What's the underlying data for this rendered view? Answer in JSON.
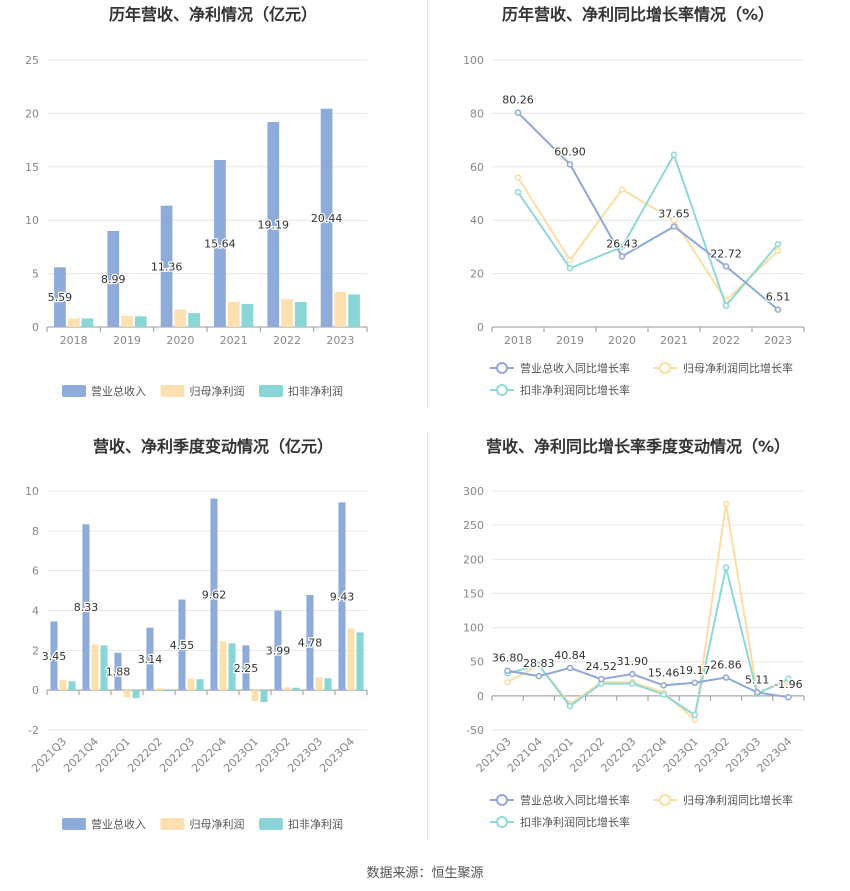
{
  "colors": {
    "revenue": "#8eabd9",
    "net_profit": "#fde0b0",
    "deducted_profit": "#8ad6d6",
    "revenue_line": "#8fa8d8",
    "net_line": "#fddea2",
    "deducted_line": "#8fd8d8",
    "grid": "#e6e6e6",
    "axis_text": "#888888",
    "label_text": "#333333"
  },
  "source_text": "数据来源：恒生聚源",
  "chart_data": [
    {
      "id": "annual-amounts",
      "type": "bar",
      "title": "历年营收、净利情况（亿元）",
      "categories": [
        "2018",
        "2019",
        "2020",
        "2021",
        "2022",
        "2023"
      ],
      "ylim": [
        0,
        25
      ],
      "yticks": [
        0,
        5,
        10,
        15,
        20,
        25
      ],
      "grid": true,
      "legend_position": "bottom",
      "series": [
        {
          "name": "营业总收入",
          "values": [
            5.59,
            8.99,
            11.36,
            15.64,
            19.19,
            20.44
          ],
          "labels": [
            "5.59",
            "8.99",
            "11.36",
            "15.64",
            "19.19",
            "20.44"
          ]
        },
        {
          "name": "归母净利润",
          "values": [
            0.8,
            1.05,
            1.65,
            2.35,
            2.6,
            3.3
          ]
        },
        {
          "name": "扣非净利润",
          "values": [
            0.8,
            1.0,
            1.3,
            2.15,
            2.35,
            3.05
          ]
        }
      ]
    },
    {
      "id": "annual-growth",
      "type": "line",
      "title": "历年营收、净利同比增长率情况（%）",
      "categories": [
        "2018",
        "2019",
        "2020",
        "2021",
        "2022",
        "2023"
      ],
      "ylim": [
        0,
        100
      ],
      "yticks": [
        0,
        20,
        40,
        60,
        80,
        100
      ],
      "grid": true,
      "legend_position": "bottom",
      "series": [
        {
          "name": "营业总收入同比增长率",
          "values": [
            80.26,
            60.9,
            26.43,
            37.65,
            22.72,
            6.51
          ],
          "labels": [
            "80.26",
            "60.90",
            "26.43",
            "37.65",
            "22.72",
            "6.51"
          ]
        },
        {
          "name": "归母净利润同比增长率",
          "values": [
            56,
            25,
            51.5,
            40,
            10,
            28.5
          ]
        },
        {
          "name": "扣非净利润同比增长率",
          "values": [
            50.5,
            22,
            30,
            64.5,
            8,
            31
          ]
        }
      ]
    },
    {
      "id": "quarterly-amounts",
      "type": "bar",
      "title": "营收、净利季度变动情况（亿元）",
      "categories": [
        "2021Q3",
        "2021Q4",
        "2022Q1",
        "2022Q2",
        "2022Q3",
        "2022Q4",
        "2023Q1",
        "2023Q2",
        "2023Q3",
        "2023Q4"
      ],
      "ylim": [
        -2,
        10
      ],
      "yticks": [
        -2,
        0,
        2,
        4,
        6,
        8,
        10
      ],
      "grid": true,
      "legend_position": "bottom",
      "series": [
        {
          "name": "营业总收入",
          "values": [
            3.45,
            8.33,
            1.88,
            3.14,
            4.55,
            9.62,
            2.25,
            3.99,
            4.78,
            9.43
          ],
          "labels": [
            "3.45",
            "8.33",
            "1.88",
            "3.14",
            "4.55",
            "9.62",
            "2.25",
            "3.99",
            "4.78",
            "9.43"
          ]
        },
        {
          "name": "归母净利润",
          "values": [
            0.5,
            2.3,
            -0.35,
            0.1,
            0.6,
            2.45,
            -0.55,
            0.15,
            0.65,
            3.1
          ]
        },
        {
          "name": "扣非净利润",
          "values": [
            0.45,
            2.25,
            -0.4,
            -0.05,
            0.55,
            2.35,
            -0.6,
            0.12,
            0.6,
            2.9
          ]
        }
      ]
    },
    {
      "id": "quarterly-growth",
      "type": "line",
      "title": "营收、净利同比增长率季度变动情况（%）",
      "categories": [
        "2021Q3",
        "2021Q4",
        "2022Q1",
        "2022Q2",
        "2022Q3",
        "2022Q4",
        "2023Q1",
        "2023Q2",
        "2023Q3",
        "2023Q4"
      ],
      "ylim": [
        -50,
        300
      ],
      "yticks": [
        -50,
        0,
        50,
        100,
        150,
        200,
        250,
        300
      ],
      "grid": true,
      "legend_position": "bottom",
      "series": [
        {
          "name": "营业总收入同比增长率",
          "values": [
            36.8,
            28.83,
            40.84,
            24.52,
            31.9,
            15.46,
            19.17,
            26.86,
            5.11,
            -1.96
          ],
          "labels": [
            "36.80",
            "28.83",
            "40.84",
            "24.52",
            "31.90",
            "15.46",
            "19.17",
            "26.86",
            "5.11",
            "-1.96"
          ]
        },
        {
          "name": "归母净利润同比增长率",
          "values": [
            20,
            45,
            -12,
            20,
            20,
            5,
            -35,
            281,
            5,
            20
          ]
        },
        {
          "name": "扣非净利润同比增长率",
          "values": [
            33,
            45,
            -15,
            18,
            18,
            2,
            -28,
            188,
            3,
            25
          ]
        }
      ]
    }
  ]
}
